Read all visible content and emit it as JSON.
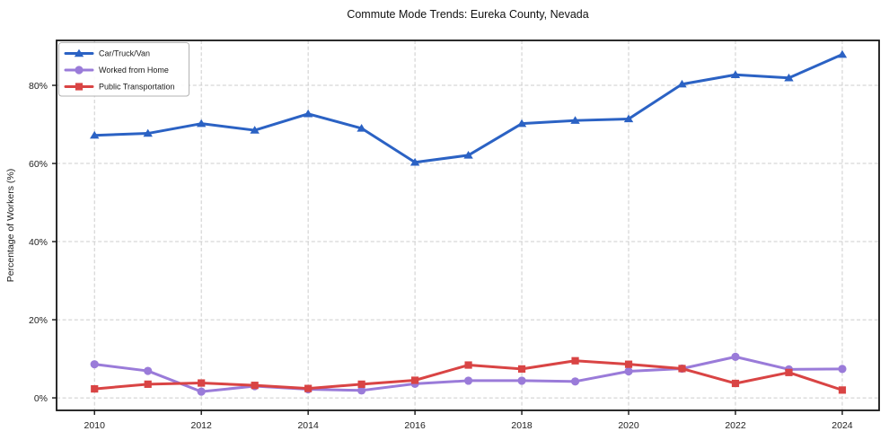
{
  "title": "Commute Mode Trends: Eureka County, Nevada",
  "chart_data": {
    "type": "line",
    "title": "Commute Mode Trends: Eureka County, Nevada",
    "xlabel": "",
    "ylabel": "Percentage of Workers (%)",
    "x": [
      2010,
      2011,
      2012,
      2013,
      2014,
      2015,
      2016,
      2017,
      2018,
      2019,
      2020,
      2021,
      2022,
      2023,
      2024
    ],
    "x_ticks": [
      2010,
      2012,
      2014,
      2016,
      2018,
      2020,
      2022,
      2024
    ],
    "y_ticks": [
      0,
      20,
      40,
      60,
      80
    ],
    "y_tick_labels": [
      "0%",
      "20%",
      "40%",
      "60%",
      "80%"
    ],
    "xlim": [
      2009.29,
      2024.69
    ],
    "ylim": [
      -3.2,
      91.5
    ],
    "grid": true,
    "grid_style": "dashed",
    "legend_position": "upper-left",
    "series": [
      {
        "name": "Car/Truck/Van",
        "color": "#2b62c4",
        "marker": "triangle",
        "values": [
          67.2,
          67.7,
          70.2,
          68.5,
          72.7,
          69.0,
          60.3,
          62.1,
          70.2,
          71.0,
          71.4,
          80.3,
          82.7,
          81.9,
          87.9
        ]
      },
      {
        "name": "Worked from Home",
        "color": "#9a7bd9",
        "marker": "circle",
        "values": [
          8.6,
          6.9,
          1.6,
          3.0,
          2.2,
          1.9,
          3.6,
          4.4,
          4.4,
          4.2,
          6.8,
          7.5,
          10.5,
          7.3,
          7.4
        ]
      },
      {
        "name": "Public Transportation",
        "color": "#d94444",
        "marker": "square",
        "values": [
          2.3,
          3.5,
          3.8,
          3.2,
          2.4,
          3.5,
          4.5,
          8.4,
          7.4,
          9.5,
          8.6,
          7.5,
          3.7,
          6.5,
          2.0
        ]
      }
    ],
    "colors": {
      "grid": "#cccccc",
      "spine": "#151515",
      "background": "#ffffff",
      "legend_border": "#b3b3b3"
    }
  }
}
